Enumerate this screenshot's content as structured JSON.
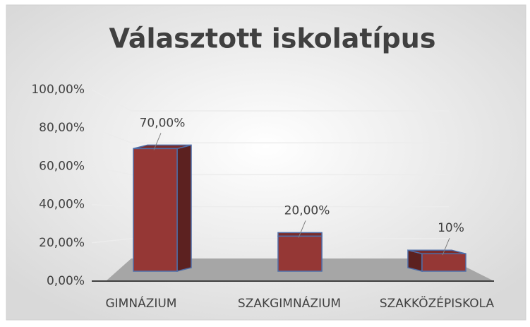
{
  "chart_data": {
    "type": "bar",
    "title": "Választott iskolatípus",
    "categories": [
      "GIMNÁZIUM",
      "SZAKGIMNÁZIUM",
      "SZAKKÖZÉPISKOLA"
    ],
    "values": [
      70,
      20,
      10
    ],
    "value_labels": [
      "70,00%",
      "20,00%",
      "10%"
    ],
    "color": "#953735",
    "ylim": [
      0,
      100
    ],
    "yticks": [
      {
        "value": 0,
        "label": "0,00%"
      },
      {
        "value": 20,
        "label": "20,00%"
      },
      {
        "value": 40,
        "label": "40,00%"
      },
      {
        "value": 60,
        "label": "60,00%"
      },
      {
        "value": 80,
        "label": "80,00%"
      },
      {
        "value": 100,
        "label": "100,00%"
      }
    ],
    "grid": true
  }
}
